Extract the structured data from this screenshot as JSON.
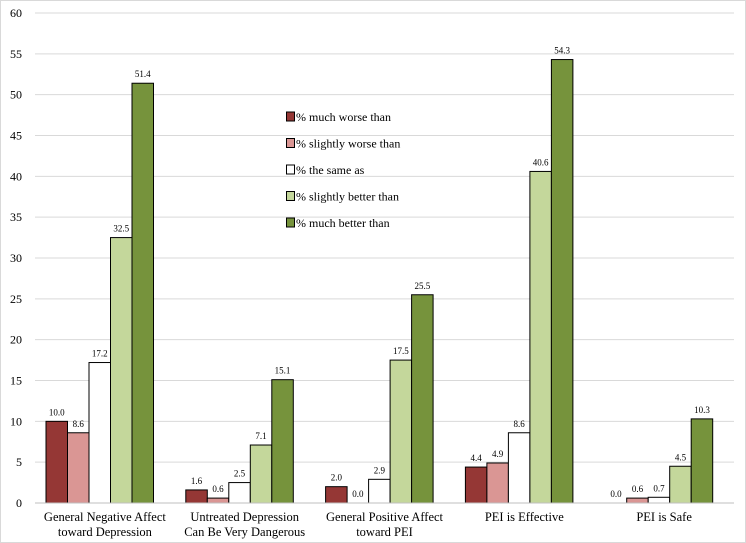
{
  "chart_data": {
    "type": "bar",
    "title": "",
    "xlabel": "",
    "ylabel": "",
    "ylim": [
      0,
      60
    ],
    "ytick_step": 5,
    "yticks": [
      "0",
      "5",
      "10",
      "15",
      "20",
      "25",
      "30",
      "35",
      "40",
      "45",
      "50",
      "55",
      "60"
    ],
    "grid": true,
    "legend_position": "center-top",
    "categories": [
      [
        "General Negative Affect",
        "toward Depression"
      ],
      [
        "Untreated Depression",
        "Can Be Very Dangerous"
      ],
      [
        "General Positive Affect",
        "toward PEI"
      ],
      [
        "PEI is Effective"
      ],
      [
        "PEI is Safe"
      ]
    ],
    "series": [
      {
        "name": "% much worse than",
        "color": "#953735",
        "values": [
          10.0,
          1.6,
          2.0,
          4.4,
          0.0
        ],
        "labels": [
          "10.0",
          "1.6",
          "2.0",
          "4.4",
          "0.0"
        ]
      },
      {
        "name": "% slightly worse than",
        "color": "#da9694",
        "values": [
          8.6,
          0.6,
          0.0,
          4.9,
          0.6
        ],
        "labels": [
          "8.6",
          "0.6",
          "0.0",
          "4.9",
          "0.6"
        ]
      },
      {
        "name": "% the same as",
        "color": "#ffffff",
        "values": [
          17.2,
          2.5,
          2.9,
          8.6,
          0.7
        ],
        "labels": [
          "17.2",
          "2.5",
          "2.9",
          "8.6",
          "0.7"
        ]
      },
      {
        "name": "% slightly better than",
        "color": "#c4d79b",
        "values": [
          32.5,
          7.1,
          17.5,
          40.6,
          4.5
        ],
        "labels": [
          "32.5",
          "7.1",
          "17.5",
          "40.6",
          "4.5"
        ]
      },
      {
        "name": "% much better than",
        "color": "#76933c",
        "values": [
          51.4,
          15.1,
          25.5,
          54.3,
          10.3
        ],
        "labels": [
          "51.4",
          "15.1",
          "25.5",
          "54.3",
          "10.3"
        ]
      }
    ]
  }
}
